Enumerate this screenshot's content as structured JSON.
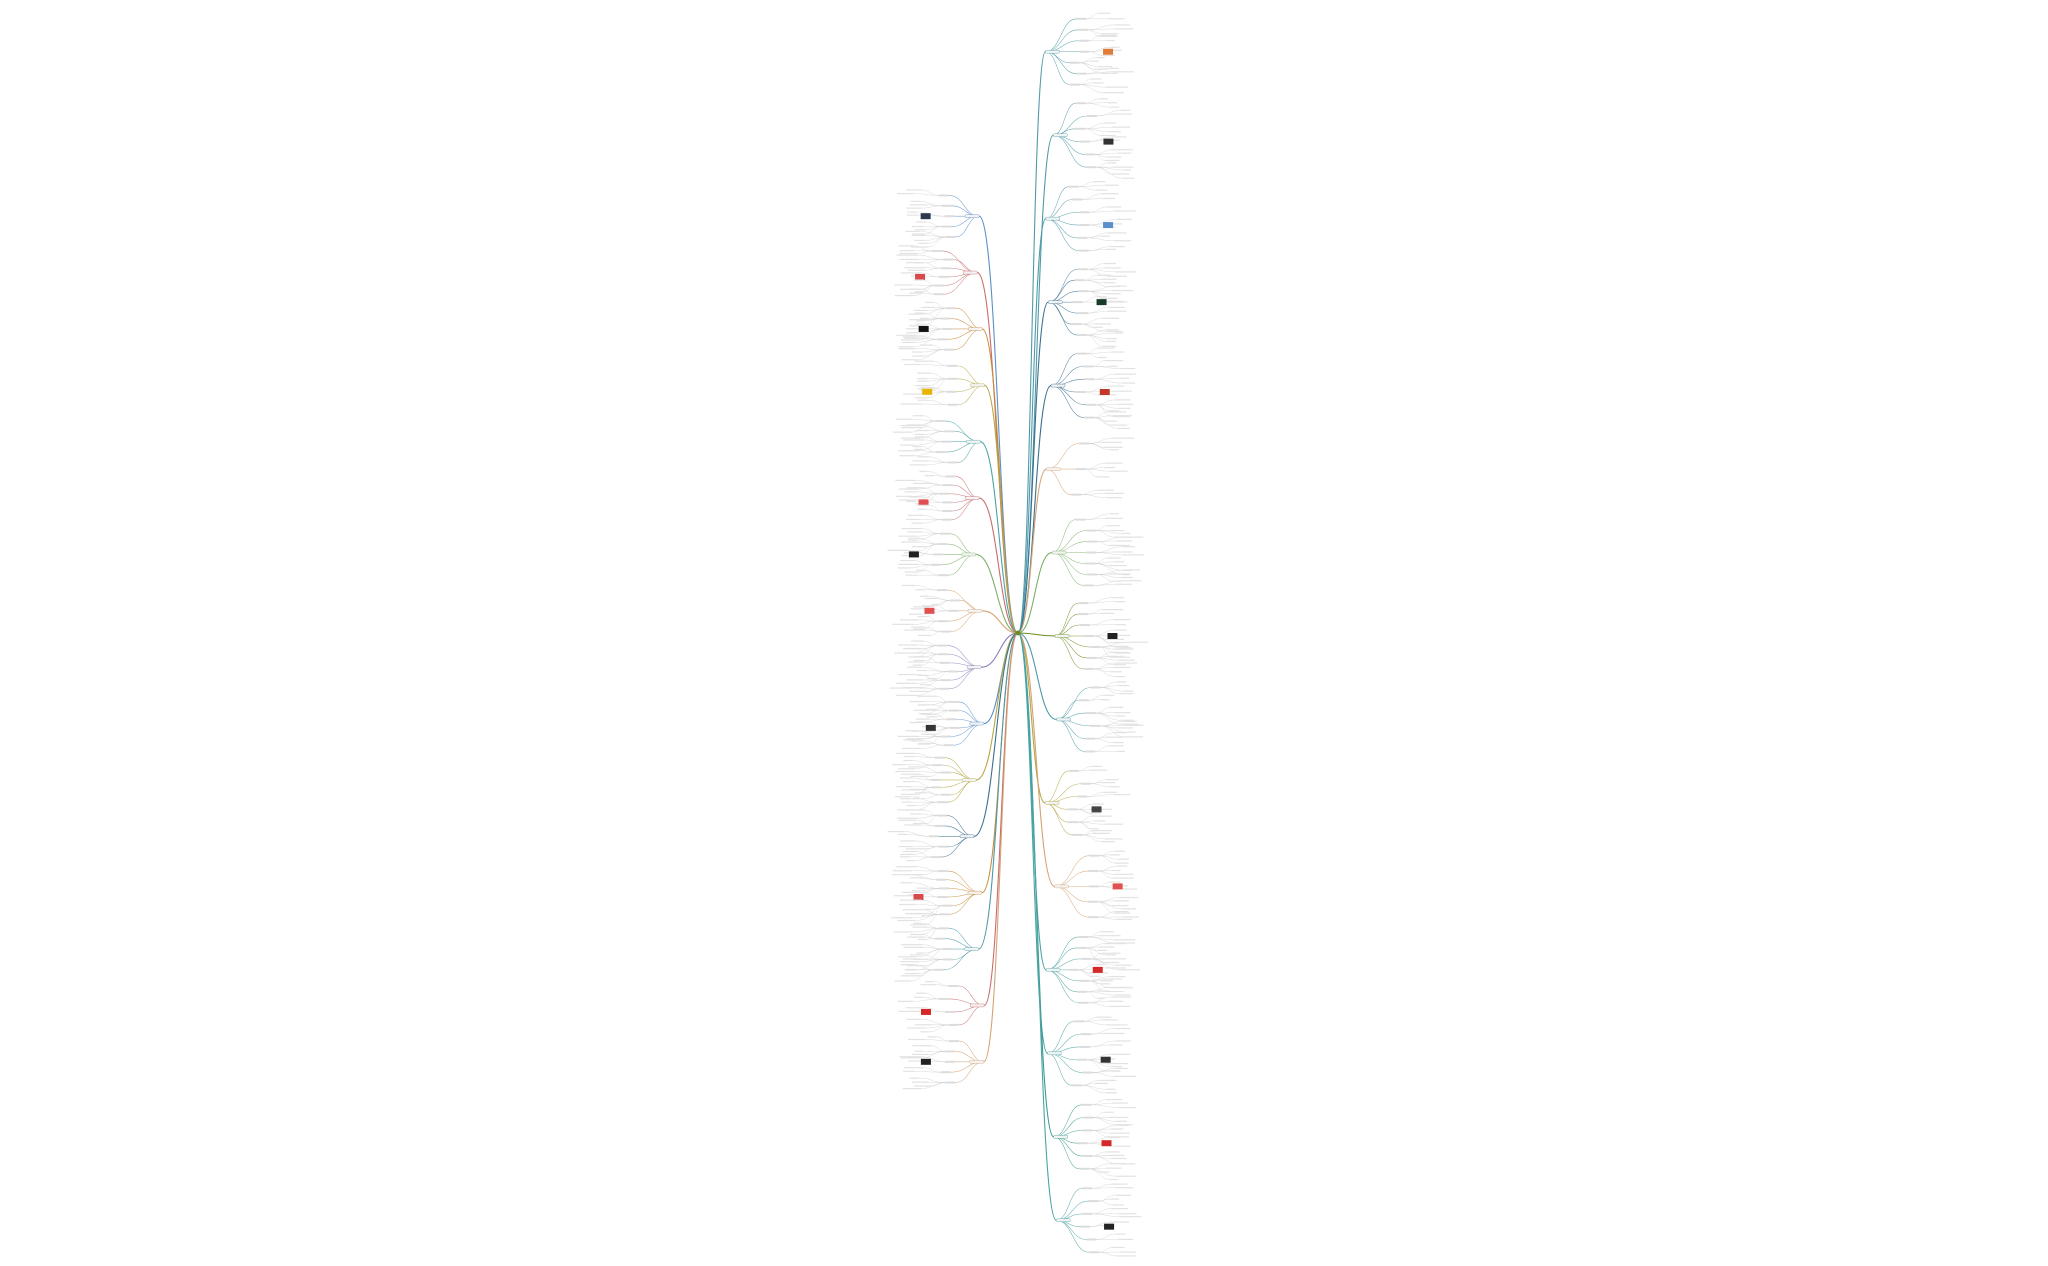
{
  "view": {
    "kind": "mind-map overview (zoomed far out, node text not legible)",
    "background": "#ffffff"
  },
  "root_node": {
    "label": "",
    "color": "#6b8e23"
  },
  "branch_colors": [
    "#7fb069",
    "#4f9aa8",
    "#b5a642",
    "#c98b3b",
    "#8a7fb5",
    "#5b8fc9",
    "#c96b6b",
    "#4aa3a3",
    "#9c6b4e",
    "#3b6e8f",
    "#8cb369",
    "#d4a373"
  ],
  "left_branches": [
    {
      "color": "#5b8fc9",
      "children": 5,
      "highlight": "#2a3a4a"
    },
    {
      "color": "#c96b6b",
      "children": 6,
      "highlight": "#d84a4a"
    },
    {
      "color": "#c98b3b",
      "children": 5,
      "highlight": "#111111"
    },
    {
      "color": "#b5a642",
      "children": 4,
      "highlight": "#e8b400"
    },
    {
      "color": "#4aa3a3",
      "children": 5,
      "highlight": ""
    },
    {
      "color": "#c96b6b",
      "children": 6,
      "highlight": "#e05050"
    },
    {
      "color": "#7fb069",
      "children": 5,
      "highlight": "#222222"
    },
    {
      "color": "#d4a373",
      "children": 5,
      "highlight": "#e05050"
    },
    {
      "color": "#8a7fb5",
      "children": 6,
      "highlight": ""
    },
    {
      "color": "#5b8fc9",
      "children": 6,
      "highlight": "#333333"
    },
    {
      "color": "#b5a642",
      "children": 7,
      "highlight": ""
    },
    {
      "color": "#3b6e8f",
      "children": 5,
      "highlight": ""
    },
    {
      "color": "#c98b3b",
      "children": 6,
      "highlight": "#d84a4a"
    },
    {
      "color": "#4f9aa8",
      "children": 5,
      "highlight": ""
    },
    {
      "color": "#c96b6b",
      "children": 4,
      "highlight": "#d62828"
    },
    {
      "color": "#d4a373",
      "children": 5,
      "highlight": "#222222"
    }
  ],
  "right_branches": [
    {
      "color": "#4f9aa8",
      "children": 7,
      "highlight": "#e07b39"
    },
    {
      "color": "#4f9aa8",
      "children": 6,
      "highlight": "#333333"
    },
    {
      "color": "#4f9aa8",
      "children": 6,
      "highlight": "#5b8fc9"
    },
    {
      "color": "#3b6e8f",
      "children": 7,
      "highlight": "#1a3a2a"
    },
    {
      "color": "#3b6e8f",
      "children": 6,
      "highlight": "#c0392b"
    },
    {
      "color": "#d4a373",
      "children": 3,
      "highlight": ""
    },
    {
      "color": "#7fb069",
      "children": 7,
      "highlight": ""
    },
    {
      "color": "#6b8e23",
      "children": 7,
      "highlight": "#222222"
    },
    {
      "color": "#4f9aa8",
      "children": 6,
      "highlight": ""
    },
    {
      "color": "#b5a642",
      "children": 6,
      "highlight": "#444444"
    },
    {
      "color": "#d4a373",
      "children": 5,
      "highlight": "#e05050"
    },
    {
      "color": "#4aa3a3",
      "children": 7,
      "highlight": "#d62828"
    },
    {
      "color": "#4aa3a3",
      "children": 6,
      "highlight": "#333333"
    },
    {
      "color": "#3b9a8f",
      "children": 6,
      "highlight": "#d62828"
    },
    {
      "color": "#4aa3a3",
      "children": 6,
      "highlight": "#222222"
    }
  ]
}
